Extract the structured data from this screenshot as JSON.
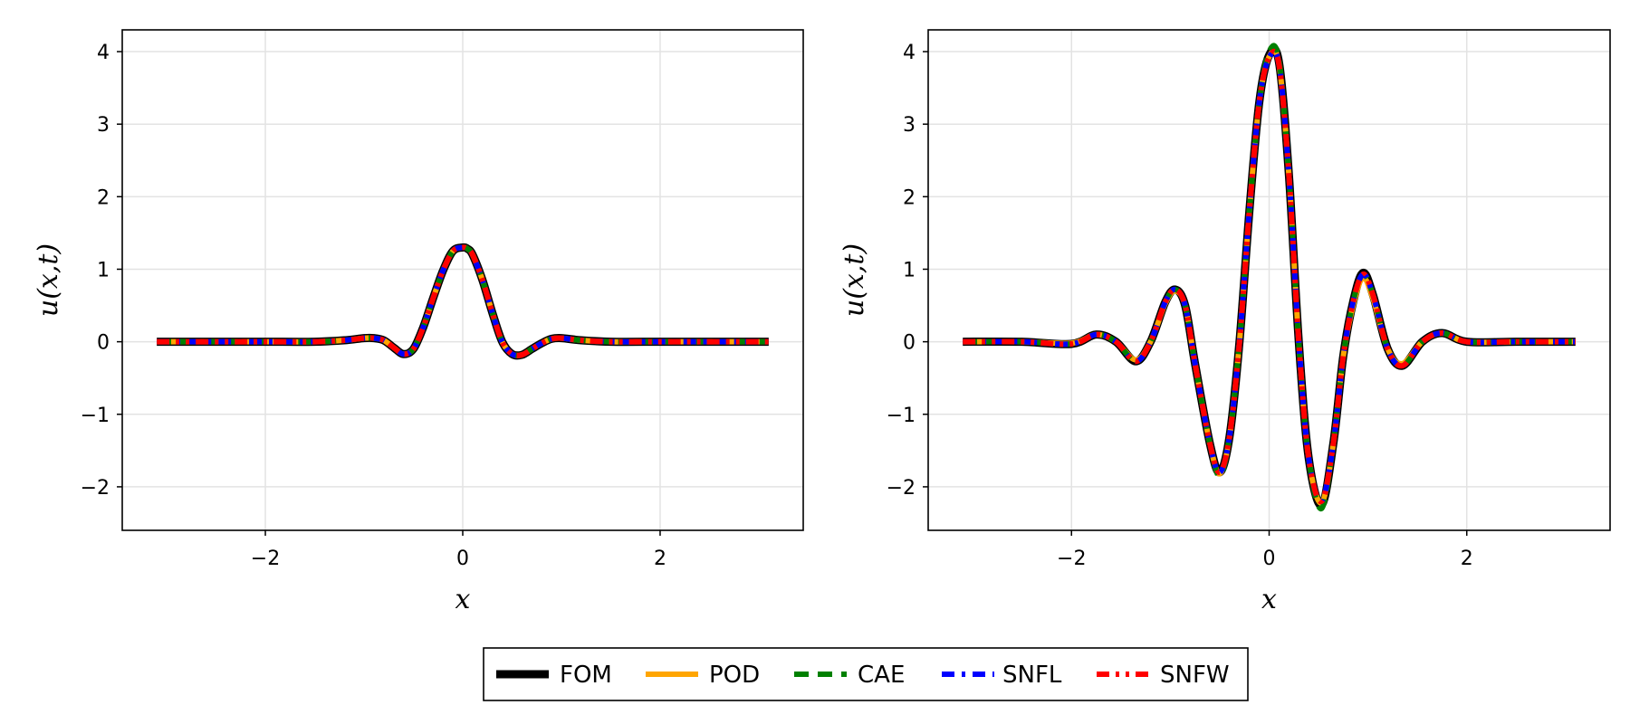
{
  "chart_data": [
    {
      "type": "line",
      "title": "",
      "xlabel": "x",
      "ylabel": "u(x,t)",
      "xlim": [
        -3.45,
        3.45
      ],
      "ylim": [
        -2.6,
        4.3
      ],
      "xticks": [
        -2,
        0,
        2
      ],
      "xtick_labels": [
        "−2",
        "0",
        "2"
      ],
      "yticks": [
        -2,
        -1,
        0,
        1,
        2,
        3,
        4
      ],
      "ytick_labels": [
        "−2",
        "−1",
        "0",
        "1",
        "2",
        "3",
        "4"
      ],
      "grid": true,
      "x": [
        -3.1,
        -2.5,
        -2.0,
        -1.5,
        -1.2,
        -1.0,
        -0.9,
        -0.8,
        -0.7,
        -0.6,
        -0.5,
        -0.4,
        -0.3,
        -0.2,
        -0.1,
        0.0,
        0.05,
        0.1,
        0.2,
        0.3,
        0.4,
        0.5,
        0.6,
        0.7,
        0.8,
        0.9,
        1.0,
        1.2,
        1.5,
        2.0,
        2.5,
        3.1
      ],
      "series": [
        {
          "name": "FOM",
          "color": "#000000",
          "style": "solid",
          "values": [
            0.0,
            0.0,
            0.0,
            0.0,
            0.02,
            0.05,
            0.05,
            0.02,
            -0.08,
            -0.17,
            -0.1,
            0.2,
            0.6,
            0.98,
            1.25,
            1.3,
            1.28,
            1.2,
            0.85,
            0.4,
            0.0,
            -0.17,
            -0.18,
            -0.1,
            -0.02,
            0.04,
            0.05,
            0.02,
            0.0,
            0.0,
            0.0,
            0.0
          ]
        },
        {
          "name": "POD",
          "color": "#ffa500",
          "style": "solid",
          "values": [
            0.0,
            0.0,
            0.0,
            0.0,
            0.02,
            0.05,
            0.05,
            0.02,
            -0.08,
            -0.17,
            -0.1,
            0.2,
            0.6,
            0.98,
            1.25,
            1.3,
            1.28,
            1.2,
            0.85,
            0.4,
            0.0,
            -0.17,
            -0.18,
            -0.1,
            -0.02,
            0.04,
            0.05,
            0.02,
            0.0,
            0.0,
            0.0,
            0.0
          ]
        },
        {
          "name": "CAE",
          "color": "#008000",
          "style": "dash",
          "values": [
            0.0,
            0.0,
            0.0,
            0.0,
            0.02,
            0.05,
            0.05,
            0.02,
            -0.08,
            -0.17,
            -0.1,
            0.2,
            0.6,
            0.98,
            1.25,
            1.3,
            1.28,
            1.2,
            0.85,
            0.4,
            0.0,
            -0.17,
            -0.18,
            -0.1,
            -0.02,
            0.04,
            0.05,
            0.02,
            0.0,
            0.0,
            0.0,
            0.0
          ]
        },
        {
          "name": "SNFL",
          "color": "#0000ff",
          "style": "dashdot",
          "values": [
            0.0,
            0.0,
            0.0,
            0.0,
            0.02,
            0.05,
            0.05,
            0.02,
            -0.08,
            -0.17,
            -0.1,
            0.2,
            0.6,
            0.98,
            1.25,
            1.3,
            1.28,
            1.2,
            0.85,
            0.4,
            0.0,
            -0.17,
            -0.18,
            -0.1,
            -0.02,
            0.04,
            0.05,
            0.02,
            0.0,
            0.0,
            0.0,
            0.0
          ]
        },
        {
          "name": "SNFW",
          "color": "#ff0000",
          "style": "dashdotdot",
          "values": [
            0.0,
            0.0,
            0.0,
            0.0,
            0.02,
            0.05,
            0.05,
            0.02,
            -0.08,
            -0.17,
            -0.1,
            0.2,
            0.6,
            0.98,
            1.25,
            1.3,
            1.28,
            1.2,
            0.85,
            0.4,
            0.0,
            -0.17,
            -0.18,
            -0.1,
            -0.02,
            0.04,
            0.05,
            0.02,
            0.0,
            0.0,
            0.0,
            0.0
          ]
        }
      ]
    },
    {
      "type": "line",
      "title": "",
      "xlabel": "x",
      "ylabel": "u(x,t)",
      "xlim": [
        -3.45,
        3.45
      ],
      "ylim": [
        -2.6,
        4.3
      ],
      "xticks": [
        -2,
        0,
        2
      ],
      "xtick_labels": [
        "−2",
        "0",
        "2"
      ],
      "yticks": [
        -2,
        -1,
        0,
        1,
        2,
        3,
        4
      ],
      "ytick_labels": [
        "−2",
        "−1",
        "0",
        "1",
        "2",
        "3",
        "4"
      ],
      "grid": true,
      "x": [
        -3.1,
        -2.5,
        -2.0,
        -1.75,
        -1.55,
        -1.35,
        -1.2,
        -1.05,
        -0.95,
        -0.85,
        -0.75,
        -0.6,
        -0.5,
        -0.4,
        -0.3,
        -0.2,
        -0.1,
        0.0,
        0.1,
        0.2,
        0.3,
        0.4,
        0.53,
        0.65,
        0.75,
        0.85,
        0.95,
        1.05,
        1.2,
        1.35,
        1.55,
        1.75,
        2.0,
        2.5,
        3.1
      ],
      "series": [
        {
          "name": "FOM",
          "color": "#000000",
          "style": "solid",
          "values": [
            0.0,
            0.0,
            -0.03,
            0.1,
            0.0,
            -0.27,
            0.0,
            0.55,
            0.72,
            0.5,
            -0.3,
            -1.4,
            -1.8,
            -1.3,
            0.0,
            1.8,
            3.3,
            3.95,
            3.85,
            2.3,
            0.0,
            -1.6,
            -2.25,
            -1.4,
            -0.2,
            0.55,
            0.95,
            0.65,
            -0.1,
            -0.33,
            0.0,
            0.12,
            0.0,
            0.0,
            0.0
          ]
        },
        {
          "name": "POD",
          "color": "#ffa500",
          "style": "solid",
          "values": [
            0.0,
            0.0,
            -0.02,
            0.1,
            0.0,
            -0.25,
            0.0,
            0.53,
            0.7,
            0.5,
            -0.3,
            -1.4,
            -1.82,
            -1.3,
            0.0,
            1.8,
            3.3,
            3.93,
            3.83,
            2.3,
            0.0,
            -1.6,
            -2.22,
            -1.4,
            -0.2,
            0.5,
            0.88,
            0.6,
            -0.1,
            -0.3,
            0.0,
            0.12,
            0.0,
            0.0,
            0.0
          ]
        },
        {
          "name": "CAE",
          "color": "#008000",
          "style": "dash",
          "values": [
            0.0,
            0.0,
            -0.03,
            0.1,
            0.0,
            -0.27,
            0.0,
            0.55,
            0.72,
            0.5,
            -0.3,
            -1.4,
            -1.85,
            -1.3,
            0.0,
            1.8,
            3.3,
            4.0,
            3.88,
            2.3,
            0.0,
            -1.6,
            -2.3,
            -1.4,
            -0.2,
            0.55,
            0.93,
            0.65,
            -0.1,
            -0.33,
            0.0,
            0.12,
            0.0,
            0.0,
            0.0
          ]
        },
        {
          "name": "SNFL",
          "color": "#0000ff",
          "style": "dashdot",
          "values": [
            0.0,
            0.0,
            -0.03,
            0.1,
            0.0,
            -0.27,
            0.0,
            0.55,
            0.72,
            0.5,
            -0.3,
            -1.4,
            -1.8,
            -1.3,
            0.0,
            1.8,
            3.3,
            3.92,
            3.82,
            2.3,
            0.0,
            -1.6,
            -2.2,
            -1.4,
            -0.2,
            0.55,
            0.93,
            0.65,
            -0.1,
            -0.33,
            0.0,
            0.12,
            0.0,
            0.0,
            0.0
          ]
        },
        {
          "name": "SNFW",
          "color": "#ff0000",
          "style": "dashdotdot",
          "values": [
            0.0,
            0.0,
            -0.03,
            0.1,
            0.0,
            -0.27,
            0.0,
            0.55,
            0.72,
            0.5,
            -0.3,
            -1.4,
            -1.8,
            -1.3,
            0.0,
            1.8,
            3.3,
            3.92,
            3.82,
            2.3,
            0.0,
            -1.6,
            -2.2,
            -1.4,
            -0.2,
            0.55,
            0.93,
            0.65,
            -0.1,
            -0.33,
            0.0,
            0.12,
            0.0,
            0.0,
            0.0
          ]
        }
      ]
    }
  ],
  "legend": {
    "placement": "bottom-center",
    "entries": [
      {
        "label": "FOM",
        "color": "#000000",
        "style": "solid"
      },
      {
        "label": "POD",
        "color": "#ffa500",
        "style": "solid"
      },
      {
        "label": "CAE",
        "color": "#008000",
        "style": "dash"
      },
      {
        "label": "SNFL",
        "color": "#0000ff",
        "style": "dashdot"
      },
      {
        "label": "SNFW",
        "color": "#ff0000",
        "style": "dashdotdot"
      }
    ]
  }
}
